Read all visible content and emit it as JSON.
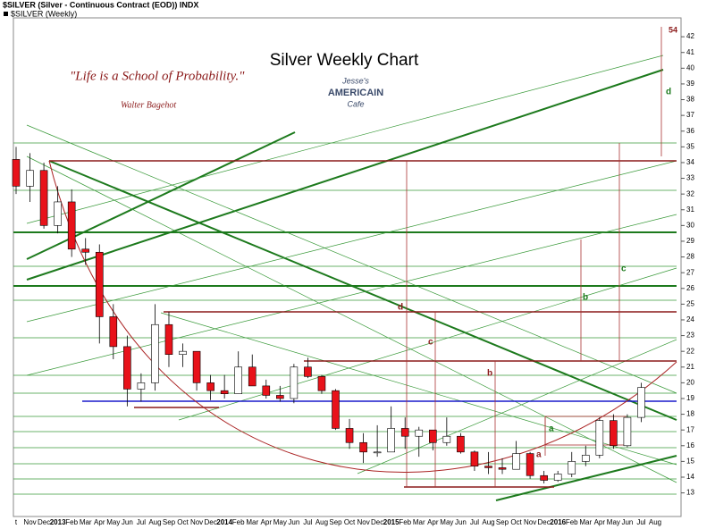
{
  "header": {
    "symbol_line": "$SILVER (Silver - Continuous Contract (EOD)) INDX",
    "legend_line": "$SILVER (Weekly)"
  },
  "quote": {
    "text": "\"Life is a School of Probability.\"",
    "author": "Walter Bagehot"
  },
  "logo": {
    "line1": "Jesse's",
    "line2": "AMERICAIN",
    "line3": "Cafe"
  },
  "annotations": {
    "letters": [
      "a",
      "a",
      "b",
      "b",
      "c",
      "c",
      "d",
      "d"
    ],
    "target": "54"
  },
  "chart_data": {
    "type": "candlestick",
    "title": "Silver Weekly Chart",
    "categories": [
      "t",
      "Nov",
      "Dec",
      "2013",
      "Feb",
      "Mar",
      "Apr",
      "May",
      "Jun",
      "Jul",
      "Aug",
      "Sep",
      "Oct",
      "Nov",
      "Dec",
      "2014",
      "Feb",
      "Mar",
      "Apr",
      "May",
      "Jun",
      "Jul",
      "Aug",
      "Sep",
      "Oct",
      "Nov",
      "Dec",
      "2015",
      "Feb",
      "Mar",
      "Apr",
      "May",
      "Jun",
      "Jul",
      "Aug",
      "Sep",
      "Oct",
      "Nov",
      "Dec",
      "2016",
      "Feb",
      "Mar",
      "Apr",
      "May",
      "Jun",
      "Jul",
      "Aug"
    ],
    "open": [
      34.2,
      32.5,
      33.5,
      30,
      31.5,
      28.5,
      28.3,
      24.2,
      22.3,
      19.6,
      20,
      23.7,
      21.8,
      22,
      20,
      19.5,
      19.3,
      21,
      19.8,
      19.2,
      19,
      21,
      20.4,
      19.5,
      17.1,
      16.2,
      15.6,
      15.6,
      17.1,
      16.6,
      17,
      16.2,
      16.6,
      15.6,
      14.7,
      14.6,
      14.5,
      15.5,
      14.1,
      13.8,
      14.2,
      15,
      15.4,
      17.6,
      16,
      17.8,
      null
    ],
    "high": [
      35,
      34.6,
      34,
      32.5,
      32.3,
      29.2,
      28.8,
      25,
      23,
      20.6,
      25,
      24.5,
      22.5,
      22,
      20.5,
      20.5,
      22,
      21.8,
      20.2,
      19.8,
      21.2,
      21.6,
      20.5,
      19.6,
      17.7,
      16.8,
      17.3,
      18.5,
      17.8,
      17.2,
      17,
      17.8,
      16.8,
      15.7,
      15.6,
      15.2,
      16.3,
      15.6,
      14.4,
      14.4,
      15.6,
      16,
      17.8,
      18,
      18,
      20,
      null
    ],
    "low": [
      32,
      31.5,
      29.8,
      29.5,
      28,
      27.5,
      22.5,
      21.5,
      18.5,
      18.8,
      19.5,
      21,
      21,
      19.5,
      18.9,
      19,
      19.3,
      19.8,
      19,
      18.8,
      18.7,
      20.3,
      19.3,
      17,
      15.8,
      14.9,
      15.3,
      15.6,
      15.8,
      15.3,
      15.7,
      16,
      15.5,
      14.4,
      14.2,
      14.2,
      14.5,
      13.9,
      13.6,
      13.7,
      14,
      14.7,
      15.2,
      15.8,
      15.9,
      17.5,
      null
    ],
    "close": [
      32.5,
      33.5,
      30,
      31.5,
      28.5,
      28.3,
      24.2,
      22.3,
      19.6,
      20,
      23.7,
      21.8,
      22,
      20,
      19.5,
      19.3,
      21,
      19.8,
      19.2,
      19,
      21,
      20.4,
      19.5,
      17.1,
      16.2,
      15.6,
      15.6,
      17.1,
      16.6,
      17,
      16.2,
      16.6,
      15.6,
      14.7,
      14.6,
      14.5,
      15.5,
      14.1,
      13.8,
      14.2,
      15,
      15.4,
      17.6,
      16,
      17.8,
      19.7,
      null
    ],
    "up_color": "#ffffff",
    "down_color": "#e8121a",
    "ylim": [
      11.5,
      43.2
    ],
    "yticks": [
      13,
      14,
      15,
      16,
      17,
      18,
      19,
      20,
      21,
      22,
      23,
      24,
      25,
      26,
      27,
      28,
      29,
      30,
      31,
      32,
      33,
      34,
      35,
      36,
      37,
      38,
      39,
      40,
      41,
      42
    ]
  }
}
